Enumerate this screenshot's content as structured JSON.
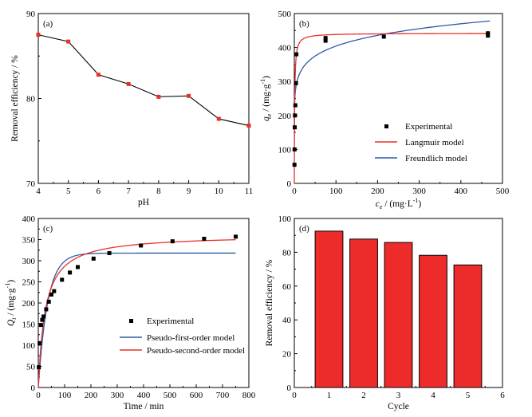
{
  "colors": {
    "marker_red": "#e8302a",
    "langmuir": "#e8302a",
    "freundlich": "#2a5ca8",
    "pfo": "#2a5ca8",
    "pso": "#e8302a",
    "bar_fill": "#ee2b2b",
    "axis": "#000000"
  },
  "chart_data": [
    {
      "id": "a",
      "panel_label": "(a)",
      "type": "line",
      "xlabel": "pH",
      "ylabel": "Removal efficiency / %",
      "xlim": [
        4,
        11
      ],
      "ylim": [
        70,
        90
      ],
      "xticks": [
        "4",
        "5",
        "6",
        "7",
        "8",
        "9",
        "10",
        "11"
      ],
      "yticks": [
        "70",
        "80",
        "90"
      ],
      "grid": false,
      "series": [
        {
          "x": [
            4,
            5,
            6,
            7,
            8,
            9,
            10,
            11
          ],
          "y": [
            87.5,
            86.7,
            82.8,
            81.7,
            80.2,
            80.3,
            77.6,
            76.8
          ]
        }
      ]
    },
    {
      "id": "b",
      "panel_label": "(b)",
      "type": "scatter",
      "xlabel_parts": [
        "c",
        "e",
        " / (mg·L",
        "-1",
        ")"
      ],
      "ylabel_parts": [
        "q",
        "e",
        " / (mg·g",
        "-1",
        ")"
      ],
      "xlim": [
        0,
        500
      ],
      "ylim": [
        0,
        500
      ],
      "xticks": [
        "0",
        "100",
        "200",
        "300",
        "400",
        "500"
      ],
      "yticks": [
        "0",
        "100",
        "200",
        "300",
        "400",
        "500"
      ],
      "grid": false,
      "legend_position": "right-middle",
      "legend": [
        "Experimental",
        "Langmuir model",
        "Freundlich model"
      ],
      "experimental": {
        "x": [
          0.4,
          0.6,
          1.0,
          1.5,
          2.5,
          4,
          5,
          75,
          75,
          215,
          465,
          465
        ],
        "y": [
          55,
          100,
          165,
          200,
          230,
          295,
          380,
          420,
          428,
          432,
          435,
          442
        ]
      },
      "langmuir": {
        "qmax": 442,
        "KL": 1.2
      },
      "freundlich": {
        "KF": 245,
        "n": 9.2
      }
    },
    {
      "id": "c",
      "panel_label": "(c)",
      "type": "scatter",
      "xlabel": "Time / min",
      "ylabel_parts": [
        "Q",
        "t",
        " / (mg·g",
        "-1",
        ")"
      ],
      "xlim": [
        0,
        800
      ],
      "ylim": [
        0,
        400
      ],
      "xticks": [
        "0",
        "100",
        "200",
        "300",
        "400",
        "500",
        "600",
        "700",
        "800"
      ],
      "yticks": [
        "0",
        "50",
        "100",
        "150",
        "200",
        "250",
        "300",
        "350",
        "400"
      ],
      "grid": false,
      "legend_position": "bottom-center",
      "legend": [
        "Experimental",
        "Pseudo-first-order model",
        "Pseudo-second-order model"
      ],
      "experimental": {
        "x": [
          2,
          5,
          10,
          15,
          20,
          30,
          40,
          50,
          60,
          90,
          120,
          150,
          210,
          270,
          390,
          510,
          630,
          750
        ],
        "y": [
          48,
          105,
          148,
          160,
          168,
          185,
          203,
          220,
          228,
          255,
          272,
          285,
          305,
          318,
          336,
          346,
          352,
          357
        ]
      },
      "pfo": {
        "qe": 318,
        "k1": 0.028
      },
      "pso": {
        "qe": 362,
        "k2": 0.000105
      }
    },
    {
      "id": "d",
      "panel_label": "(d)",
      "type": "bar",
      "xlabel": "Cycle",
      "ylabel": "Removal efficiency / %",
      "xlim": [
        0,
        6
      ],
      "ylim": [
        0,
        100
      ],
      "xticks": [
        "0",
        "1",
        "2",
        "3",
        "4",
        "5",
        "6"
      ],
      "yticks": [
        "0",
        "20",
        "40",
        "60",
        "80",
        "100"
      ],
      "grid": false,
      "categories": [
        1,
        2,
        3,
        4,
        5
      ],
      "values": [
        92.5,
        87.8,
        85.8,
        78.2,
        72.5
      ]
    }
  ]
}
